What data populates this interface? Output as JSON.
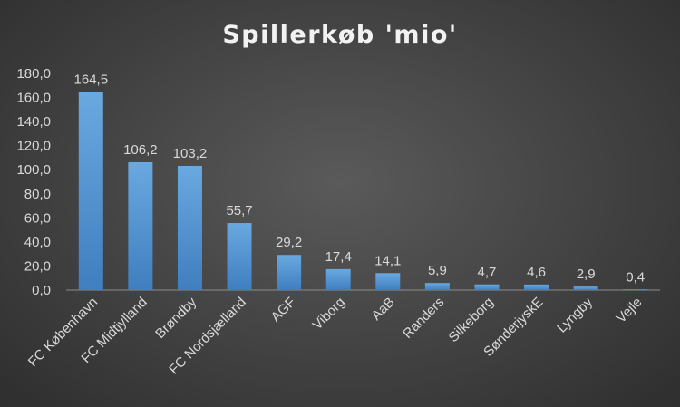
{
  "chart_data": {
    "type": "bar",
    "title": "Spillerkøb 'mio'",
    "categories": [
      "FC København",
      "FC Midtjylland",
      "Brøndby",
      "FC Nordsjælland",
      "AGF",
      "Viborg",
      "AaB",
      "Randers",
      "Silkeborg",
      "SønderjyskE",
      "Lyngby",
      "Vejle"
    ],
    "values": [
      164.5,
      106.2,
      103.2,
      55.7,
      29.2,
      17.4,
      14.1,
      5.9,
      4.7,
      4.6,
      2.9,
      0.4
    ],
    "value_labels": [
      "164,5",
      "106,2",
      "103,2",
      "55,7",
      "29,2",
      "17,4",
      "14,1",
      "5,9",
      "4,7",
      "4,6",
      "2,9",
      "0,4"
    ],
    "ylim": [
      0,
      180
    ],
    "yticks": [
      "0,0",
      "20,0",
      "40,0",
      "60,0",
      "80,0",
      "100,0",
      "120,0",
      "140,0",
      "160,0",
      "180,0"
    ],
    "grid": false,
    "legend": "none",
    "colors": {
      "bar": "#5b9bd5",
      "bar_top": "#6aa8e0",
      "bar_bottom": "#3f7fbf",
      "text": "#d9d9d9",
      "title": "#f2f2f2",
      "axis": "#8c8c8c",
      "background": "#404040"
    }
  }
}
